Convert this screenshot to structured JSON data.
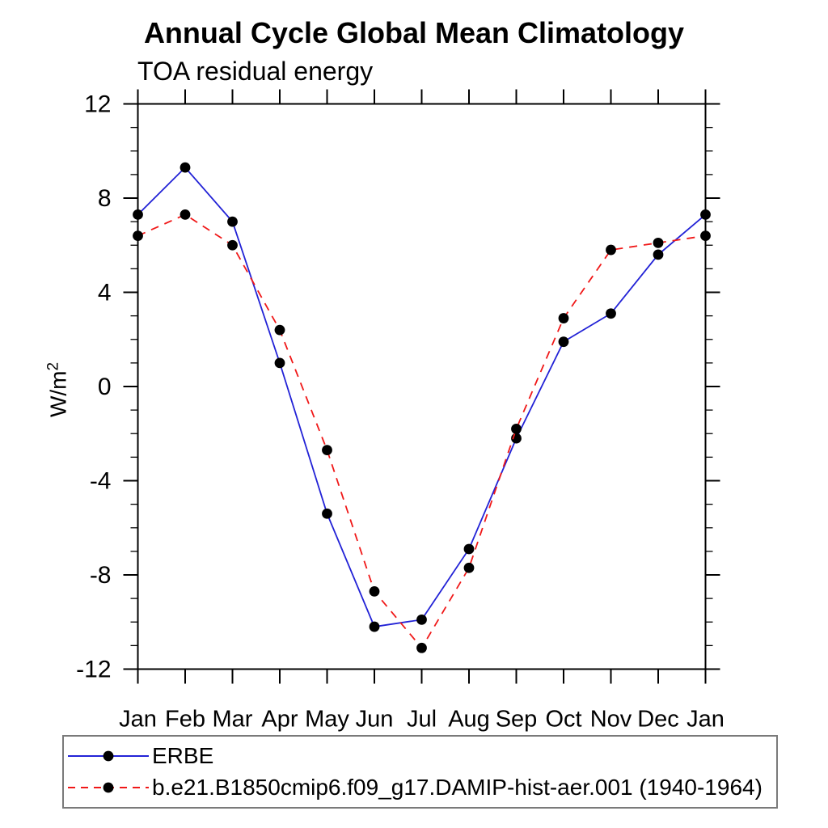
{
  "title": "Annual Cycle Global Mean Climatology",
  "subtitle": "TOA residual energy",
  "ylabel": {
    "base": "W/m",
    "exponent": "2"
  },
  "chart_data": {
    "type": "line",
    "title": "Annual Cycle Global Mean Climatology",
    "subtitle": "TOA residual energy",
    "xlabel": "",
    "ylabel": "W/m2",
    "categories": [
      "Jan",
      "Feb",
      "Mar",
      "Apr",
      "May",
      "Jun",
      "Jul",
      "Aug",
      "Sep",
      "Oct",
      "Nov",
      "Dec",
      "Jan"
    ],
    "ylim": [
      -12,
      12
    ],
    "yticks": [
      -12,
      -8,
      -4,
      0,
      4,
      8,
      12
    ],
    "yminor_step": 1,
    "grid": "off",
    "legend_position": "bottom-left-box",
    "frame_color": "#000000",
    "marker_color": "#000000",
    "series": [
      {
        "name": "ERBE",
        "color": "#2222d6",
        "line_style": "solid",
        "marker": "filled-circle",
        "values": [
          7.3,
          9.3,
          7.0,
          1.0,
          -5.4,
          -10.2,
          -9.9,
          -6.9,
          -2.2,
          1.9,
          3.1,
          5.6,
          7.3
        ]
      },
      {
        "name": "b.e21.B1850cmip6.f09_g17.DAMIP-hist-aer.001 (1940-1964)",
        "color": "#f01818",
        "line_style": "dashed",
        "marker": "filled-circle",
        "values": [
          6.4,
          7.3,
          6.0,
          2.4,
          -2.7,
          -8.7,
          -11.1,
          -7.7,
          -1.8,
          2.9,
          5.8,
          6.1,
          6.4
        ]
      }
    ]
  }
}
